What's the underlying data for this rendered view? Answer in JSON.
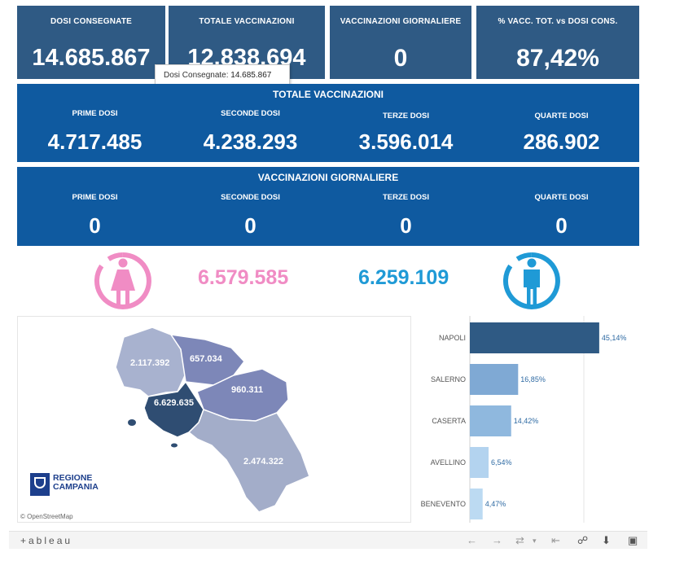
{
  "kpis": [
    {
      "label": "DOSI  CONSEGNATE",
      "value": "14.685.867"
    },
    {
      "label": "TOTALE VACCINAZIONI",
      "value": "12.838.694"
    },
    {
      "label": "VACCINAZIONI GIORNALIERE",
      "value": "0"
    },
    {
      "label": "% VACC. TOT. vs DOSI CONS.",
      "value": "87,42%"
    }
  ],
  "tooltip": {
    "label": "Dosi Consegnate:",
    "value": "14.685.867"
  },
  "totale": {
    "title": "TOTALE VACCINAZIONI",
    "cols": [
      {
        "label": "PRIME DOSI",
        "value": "4.717.485"
      },
      {
        "label": "SECONDE DOSI",
        "value": "4.238.293"
      },
      {
        "label": "TERZE DOSI",
        "value": "3.596.014"
      },
      {
        "label": "QUARTE DOSI",
        "value": "286.902"
      }
    ]
  },
  "giornaliere": {
    "title": "VACCINAZIONI GIORNALIERE",
    "cols": [
      {
        "label": "PRIME DOSI",
        "value": "0"
      },
      {
        "label": "SECONDE DOSI",
        "value": "0"
      },
      {
        "label": "TERZE DOSI",
        "value": "0"
      },
      {
        "label": "QUARTE DOSI",
        "value": "0"
      }
    ]
  },
  "gender": {
    "female": {
      "value": "6.579.585",
      "color": "#f08cc4",
      "icon": "female-icon"
    },
    "male": {
      "value": "6.259.109",
      "color": "#1f9ad6",
      "icon": "male-icon"
    }
  },
  "map": {
    "labels": {
      "caserta": "2.117.392",
      "benevento": "657.034",
      "avellino": "960.311",
      "napoli": "6.629.635",
      "salerno": "2.474.322"
    },
    "logo_line1": "REGIONE",
    "logo_line2": "CAMPANIA",
    "attribution": "© OpenStreetMap"
  },
  "chart_data": {
    "type": "bar",
    "orientation": "horizontal",
    "categories": [
      "NAPOLI",
      "SALERNO",
      "CASERTA",
      "AVELLINO",
      "BENEVENTO"
    ],
    "values": [
      45.14,
      16.85,
      14.42,
      6.54,
      4.47
    ],
    "labels": [
      "45,14%",
      "16,85%",
      "14,42%",
      "6,54%",
      "4,47%"
    ],
    "colors": [
      "#2f5a84",
      "#7fa9d4",
      "#8fb8de",
      "#b3d3ef",
      "#bcdaf2"
    ],
    "xlim": [
      0,
      50
    ]
  },
  "footer": {
    "brand": "+ableau"
  },
  "colors": {
    "tile": "#2f5a84",
    "band": "#0f5aa0"
  }
}
